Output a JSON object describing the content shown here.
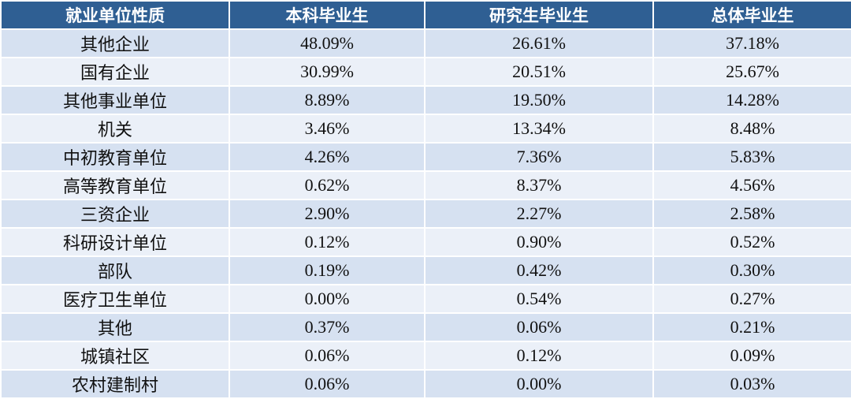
{
  "table": {
    "header": [
      "就业单位性质",
      "本科毕业生",
      "研究生毕业生",
      "总体毕业生"
    ],
    "rows": [
      [
        "其他企业",
        "48.09%",
        "26.61%",
        "37.18%"
      ],
      [
        "国有企业",
        "30.99%",
        "20.51%",
        "25.67%"
      ],
      [
        "其他事业单位",
        "8.89%",
        "19.50%",
        "14.28%"
      ],
      [
        "机关",
        "3.46%",
        "13.34%",
        "8.48%"
      ],
      [
        "中初教育单位",
        "4.26%",
        "7.36%",
        "5.83%"
      ],
      [
        "高等教育单位",
        "0.62%",
        "8.37%",
        "4.56%"
      ],
      [
        "三资企业",
        "2.90%",
        "2.27%",
        "2.58%"
      ],
      [
        "科研设计单位",
        "0.12%",
        "0.90%",
        "0.52%"
      ],
      [
        "部队",
        "0.19%",
        "0.42%",
        "0.30%"
      ],
      [
        "医疗卫生单位",
        "0.00%",
        "0.54%",
        "0.27%"
      ],
      [
        "其他",
        "0.37%",
        "0.06%",
        "0.21%"
      ],
      [
        "城镇社区",
        "0.06%",
        "0.12%",
        "0.09%"
      ],
      [
        "农村建制村",
        "0.06%",
        "0.00%",
        "0.03%"
      ]
    ]
  }
}
